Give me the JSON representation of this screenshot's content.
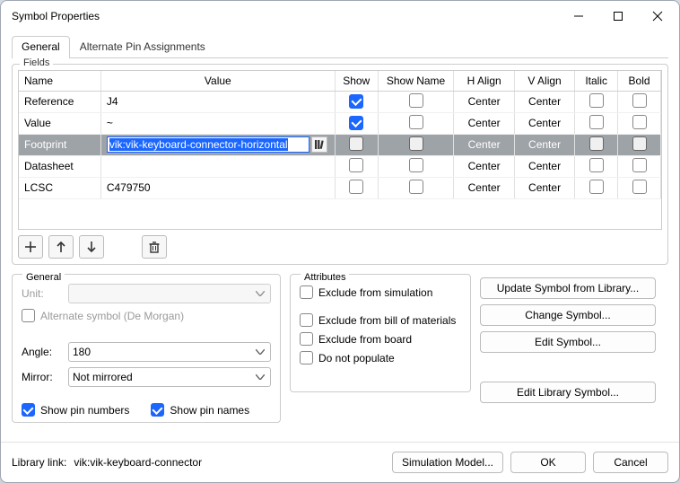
{
  "window": {
    "title": "Symbol Properties"
  },
  "tabs": {
    "general": "General",
    "alternate": "Alternate Pin Assignments"
  },
  "fields_group_label": "Fields",
  "fields_table": {
    "headers": {
      "name": "Name",
      "value": "Value",
      "show": "Show",
      "show_name": "Show Name",
      "h_align": "H Align",
      "v_align": "V Align",
      "italic": "Italic",
      "bold": "Bold"
    },
    "rows": [
      {
        "name": "Reference",
        "value": "J4",
        "selected": false,
        "editing": false,
        "show": true,
        "show_name": false,
        "h_align": "Center",
        "v_align": "Center",
        "italic": false,
        "bold": false
      },
      {
        "name": "Value",
        "value": "~",
        "selected": false,
        "editing": false,
        "show": true,
        "show_name": false,
        "h_align": "Center",
        "v_align": "Center",
        "italic": false,
        "bold": false
      },
      {
        "name": "Footprint",
        "value": "vik:vik-keyboard-connector-horizontal",
        "selected": true,
        "editing": true,
        "has_lib_button": true,
        "show": false,
        "show_name": false,
        "h_align": "Center",
        "v_align": "Center",
        "italic": false,
        "bold": false
      },
      {
        "name": "Datasheet",
        "value": "",
        "selected": false,
        "editing": false,
        "show": false,
        "show_name": false,
        "h_align": "Center",
        "v_align": "Center",
        "italic": false,
        "bold": false
      },
      {
        "name": "LCSC",
        "value": "C479750",
        "selected": false,
        "editing": false,
        "show": false,
        "show_name": false,
        "h_align": "Center",
        "v_align": "Center",
        "italic": false,
        "bold": false
      }
    ]
  },
  "toolbar": {
    "add": "Add field",
    "up": "Move up",
    "down": "Move down",
    "delete": "Delete field"
  },
  "general_group": {
    "legend": "General",
    "unit_label": "Unit:",
    "unit_value": "",
    "unit_enabled": false,
    "alt_symbol_label": "Alternate symbol (De Morgan)",
    "alt_symbol_checked": false,
    "alt_symbol_enabled": false,
    "angle_label": "Angle:",
    "angle_value": "180",
    "mirror_label": "Mirror:",
    "mirror_value": "Not mirrored",
    "show_pin_numbers_label": "Show pin numbers",
    "show_pin_numbers_checked": true,
    "show_pin_names_label": "Show pin names",
    "show_pin_names_checked": true
  },
  "attributes_group": {
    "legend": "Attributes",
    "exclude_sim": "Exclude from simulation",
    "exclude_sim_checked": false,
    "exclude_bom": "Exclude from bill of materials",
    "exclude_bom_checked": false,
    "exclude_board": "Exclude from board",
    "exclude_board_checked": false,
    "dnp": "Do not populate",
    "dnp_checked": false
  },
  "right_buttons": {
    "update": "Update Symbol from Library...",
    "change": "Change Symbol...",
    "edit": "Edit Symbol...",
    "edit_lib": "Edit Library Symbol..."
  },
  "footer": {
    "lib_link_label": "Library link:",
    "lib_link_value": "vik:vik-keyboard-connector",
    "sim_model": "Simulation Model...",
    "ok": "OK",
    "cancel": "Cancel"
  },
  "colors": {
    "accent": "#1a66ff",
    "row_selected_bg": "#9ea3a8",
    "border": "#cccccc"
  }
}
